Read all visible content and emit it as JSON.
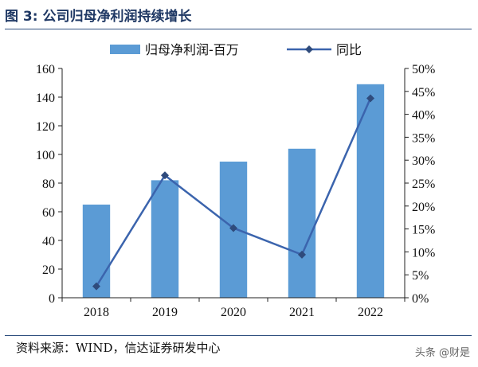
{
  "figure": {
    "title": "图 3: 公司归母净利润持续增长",
    "source": "资料来源：WIND，信达证券研发中心",
    "watermark": "头条 @财是"
  },
  "chart_data": {
    "type": "bar",
    "categories": [
      "2018",
      "2019",
      "2020",
      "2021",
      "2022"
    ],
    "series": [
      {
        "name": "归母净利润-百万",
        "type": "bar",
        "axis": "left",
        "values": [
          65,
          82,
          95,
          104,
          149
        ],
        "color": "#5b9bd5"
      },
      {
        "name": "同比",
        "type": "line",
        "axis": "right",
        "unit": "%",
        "values": [
          2.5,
          26.7,
          15.2,
          9.4,
          43.5
        ],
        "color": "#3b64ad"
      }
    ],
    "y_left": {
      "min": 0,
      "max": 160,
      "ticks": [
        "0",
        "20",
        "40",
        "60",
        "80",
        "100",
        "120",
        "140",
        "160"
      ]
    },
    "y_right": {
      "min": 0,
      "max": 50,
      "ticks": [
        "0%",
        "5%",
        "10%",
        "15%",
        "20%",
        "25%",
        "30%",
        "35%",
        "40%",
        "45%",
        "50%"
      ]
    },
    "legend_position": "top",
    "grid": false
  }
}
